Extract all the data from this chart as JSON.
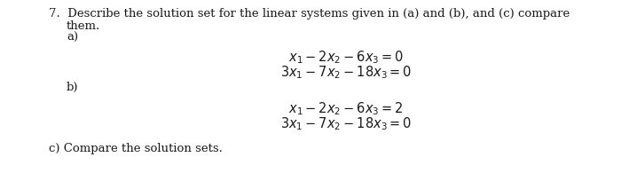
{
  "bg_color": "#ffffff",
  "text_color": "#1a1a1a",
  "figsize": [
    7.0,
    2.05
  ],
  "dpi": 100,
  "line1": "7.  Describe the solution set for the linear systems given in (a) and (b), and (c) compare",
  "line2": "them.",
  "label_a": "a)",
  "label_b": "b)",
  "label_c": "c) Compare the solution sets.",
  "eq_a1": "$x_1 - 2x_2 - 6x_3 = 0$",
  "eq_a2": "$3x_1 - 7x_2 - 18x_3 = 0$",
  "eq_b1": "$x_1 - 2x_2 - 6x_3 = 2$",
  "eq_b2": "$3x_1 - 7x_2 - 18x_3 = 0$",
  "fontsize": 9.5,
  "eq_fontsize": 10.5
}
